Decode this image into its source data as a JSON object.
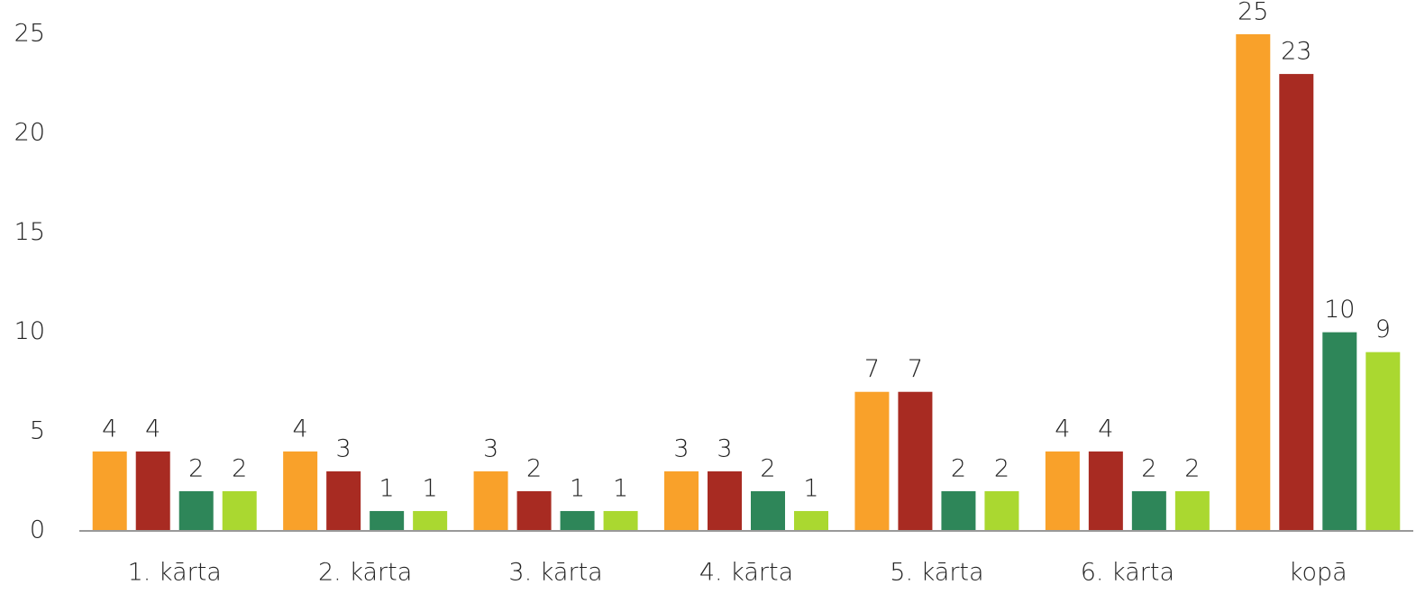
{
  "chart_data": {
    "type": "bar",
    "categories": [
      "1. kārta",
      "2. kārta",
      "3. kārta",
      "4. kārta",
      "5. kārta",
      "6. kārta",
      "kopā"
    ],
    "series": [
      {
        "color": "#F9A12A",
        "values": [
          4,
          4,
          3,
          3,
          7,
          4,
          25
        ]
      },
      {
        "color": "#A82B22",
        "values": [
          4,
          3,
          2,
          3,
          7,
          4,
          23
        ]
      },
      {
        "color": "#2E8659",
        "values": [
          2,
          1,
          1,
          2,
          2,
          2,
          10
        ]
      },
      {
        "color": "#AAD830",
        "values": [
          2,
          1,
          1,
          1,
          2,
          2,
          9
        ]
      }
    ],
    "ylim": [
      0,
      25
    ],
    "yticks": [
      0,
      5,
      10,
      15,
      20,
      25
    ],
    "grid": false
  }
}
